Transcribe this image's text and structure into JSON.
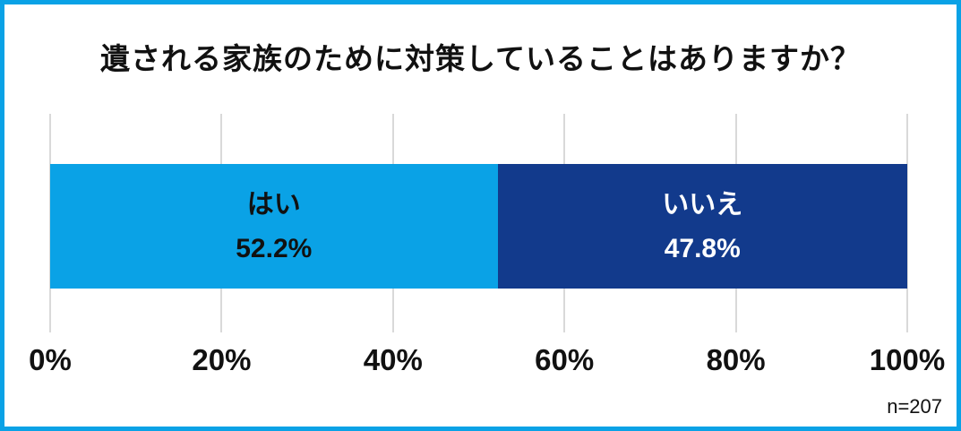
{
  "chart_data": {
    "type": "bar",
    "orientation": "horizontal-stacked",
    "title": "遺される家族のために対策していることはありますか？",
    "categories": [
      "はい",
      "いいえ"
    ],
    "values": [
      52.2,
      47.8
    ],
    "value_labels": [
      "52.2%",
      "47.8%"
    ],
    "series": [
      {
        "name": "はい",
        "value": 52.2,
        "label": "52.2%",
        "color": "#0AA2E6",
        "text_color": "#111111"
      },
      {
        "name": "いいえ",
        "value": 47.8,
        "label": "47.8%",
        "color": "#123A8C",
        "text_color": "#FFFFFF"
      }
    ],
    "xlim": [
      0,
      100
    ],
    "x_ticks": [
      "0%",
      "20%",
      "40%",
      "60%",
      "80%",
      "100%"
    ],
    "grid": true,
    "legend": "none",
    "sample_size": "n=207",
    "colors": {
      "accent_border": "#0AA2E6",
      "yes_bar": "#0AA2E6",
      "no_bar": "#123A8C",
      "gridline": "#D9D9D9",
      "title_text": "#111111",
      "yes_text": "#111111",
      "no_text": "#FFFFFF"
    }
  }
}
